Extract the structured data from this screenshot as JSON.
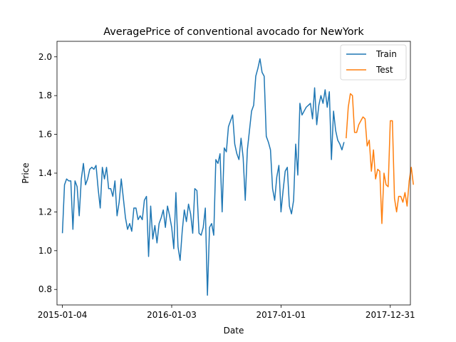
{
  "chart_data": {
    "type": "line",
    "title": "AveragePrice of conventional avocado for NewYork",
    "xlabel": "Date",
    "ylabel": "Price",
    "xlim": [
      "2014-12-17",
      "2018-03-08"
    ],
    "ylim": [
      0.72,
      2.08
    ],
    "x_ticks": [
      "2015-01-04",
      "2016-01-03",
      "2017-01-01",
      "2017-12-31"
    ],
    "y_ticks": [
      "0.8",
      "1.0",
      "1.2",
      "1.4",
      "1.6",
      "1.8",
      "2.0"
    ],
    "grid": false,
    "legend_position": "top-right",
    "series": [
      {
        "name": "Train",
        "color": "#1f77b4",
        "start": "2015-01-04",
        "interval_days": 7,
        "values": [
          1.09,
          1.34,
          1.37,
          1.36,
          1.36,
          1.11,
          1.36,
          1.33,
          1.18,
          1.37,
          1.45,
          1.34,
          1.37,
          1.42,
          1.43,
          1.42,
          1.44,
          1.32,
          1.22,
          1.43,
          1.37,
          1.43,
          1.32,
          1.32,
          1.28,
          1.36,
          1.18,
          1.25,
          1.37,
          1.27,
          1.17,
          1.11,
          1.14,
          1.1,
          1.22,
          1.22,
          1.16,
          1.18,
          1.16,
          1.26,
          1.28,
          0.97,
          1.23,
          1.06,
          1.13,
          1.04,
          1.14,
          1.17,
          1.21,
          1.12,
          1.23,
          1.18,
          1.12,
          1.01,
          1.3,
          1.02,
          0.95,
          1.1,
          1.21,
          1.15,
          1.24,
          1.19,
          1.09,
          1.32,
          1.31,
          1.09,
          1.08,
          1.12,
          1.22,
          0.77,
          1.12,
          1.14,
          1.08,
          1.47,
          1.45,
          1.5,
          1.2,
          1.53,
          1.51,
          1.64,
          1.67,
          1.7,
          1.55,
          1.5,
          1.47,
          1.58,
          1.48,
          1.26,
          1.52,
          1.62,
          1.72,
          1.75,
          1.9,
          1.94,
          1.99,
          1.92,
          1.9,
          1.59,
          1.56,
          1.52,
          1.32,
          1.26,
          1.38,
          1.44,
          1.2,
          1.31,
          1.41,
          1.43,
          1.23,
          1.19,
          1.26,
          1.55,
          1.39,
          1.76,
          1.7,
          1.72,
          1.74,
          1.75,
          1.76,
          1.68,
          1.84,
          1.65,
          1.75,
          1.8,
          1.76,
          1.83,
          1.74,
          1.82,
          1.47,
          1.72,
          1.62,
          1.57,
          1.55,
          1.52,
          1.56
        ]
      },
      {
        "name": "Test",
        "color": "#ff7f0e",
        "start": "2017-08-06",
        "interval_days": 7,
        "values": [
          1.58,
          1.74,
          1.81,
          1.8,
          1.61,
          1.61,
          1.65,
          1.67,
          1.69,
          1.68,
          1.54,
          1.57,
          1.41,
          1.52,
          1.37,
          1.42,
          1.41,
          1.14,
          1.4,
          1.34,
          1.33,
          1.67,
          1.67,
          1.27,
          1.2,
          1.28,
          1.28,
          1.25,
          1.3,
          1.23,
          1.36,
          1.43,
          1.34
        ]
      }
    ]
  }
}
